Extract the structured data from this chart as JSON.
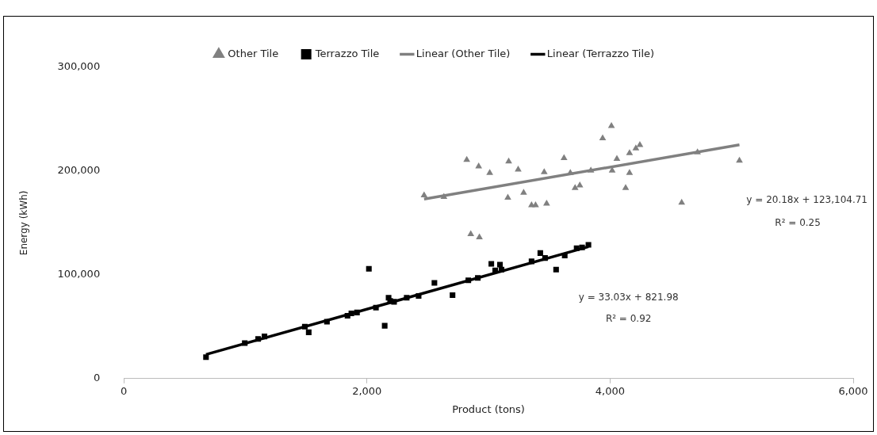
{
  "chart_data": {
    "type": "scatter",
    "xlabel": "Product (tons)",
    "ylabel": "Energy (kWh)",
    "xlim": [
      0,
      6000
    ],
    "xticks": [
      {
        "value": 0,
        "label": "0"
      },
      {
        "value": 2000,
        "label": "2,000"
      },
      {
        "value": 4000,
        "label": "4,000"
      },
      {
        "value": 6000,
        "label": "6,000"
      }
    ],
    "ylim": [
      0,
      300000
    ],
    "yticks": [
      {
        "value": 0,
        "label": "0"
      },
      {
        "value": 100000,
        "label": "100,000"
      },
      {
        "value": 200000,
        "label": "200,000"
      },
      {
        "value": 300000,
        "label": "300,000"
      }
    ],
    "grid": false,
    "legend": "top",
    "series": [
      {
        "name": "Other Tile",
        "marker": "triangle",
        "color": "#808080",
        "x": [
          2470,
          2633,
          2821,
          2919,
          3010,
          2854,
          2925,
          3159,
          3166,
          3244,
          3289,
          3354,
          3387,
          3458,
          3478,
          3621,
          3673,
          3712,
          3751,
          3842,
          3939,
          4011,
          4017,
          4056,
          4128,
          4160,
          4160,
          4212,
          4245,
          4589,
          4719,
          5064
        ],
        "values": [
          176700,
          175100,
          210900,
          204500,
          198200,
          139300,
          136100,
          174300,
          209300,
          201400,
          179100,
          167100,
          167100,
          199000,
          168700,
          212500,
          198200,
          183800,
          186200,
          200500,
          231600,
          243500,
          200500,
          211700,
          183800,
          198200,
          217300,
          222000,
          225200,
          169500,
          218000,
          210100
        ]
      },
      {
        "name": "Terrazzo Tile",
        "marker": "square",
        "color": "#000000",
        "x": [
          676,
          995,
          1105,
          1157,
          1489,
          1521,
          1671,
          1840,
          1872,
          1918,
          2016,
          2074,
          2146,
          2178,
          2191,
          2223,
          2327,
          2425,
          2555,
          2704,
          2834,
          2912,
          3023,
          3055,
          3094,
          3107,
          3354,
          3426,
          3465,
          3556,
          3627,
          3725,
          3770,
          3822
        ],
        "values": [
          20700,
          34200,
          38200,
          40600,
          50100,
          44600,
          54900,
          60500,
          62900,
          63700,
          105800,
          68400,
          50900,
          78000,
          74800,
          74000,
          78000,
          79600,
          92300,
          80400,
          94700,
          97100,
          110600,
          104200,
          109800,
          105000,
          113000,
          121000,
          116200,
          105000,
          118600,
          125700,
          126500,
          128900
        ]
      },
      {
        "name": "Linear (Other Tile)",
        "type": "line",
        "marker": "none",
        "color": "#808080",
        "x": [
          2470,
          5064
        ],
        "values": [
          173000,
          225300
        ]
      },
      {
        "name": "Linear (Terrazzo Tile)",
        "type": "line",
        "marker": "none",
        "color": "#000000",
        "x": [
          676,
          3822
        ],
        "values": [
          23200,
          127100
        ]
      }
    ],
    "annotations": [
      "y = 20.18x + 123,104.71",
      "R² = 0.25",
      "y = 33.03x + 821.98",
      "R² = 0.92"
    ]
  }
}
